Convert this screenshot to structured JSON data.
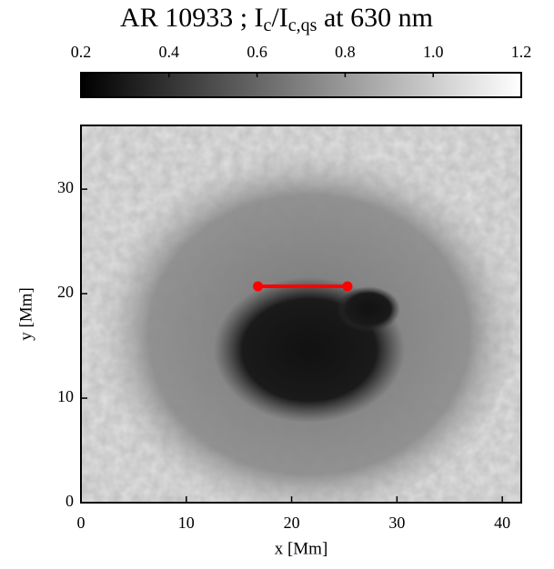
{
  "chart_data": {
    "type": "image",
    "title_parts": [
      "AR 10933 ; I",
      "c",
      "/I",
      "c,qs",
      " at 630 nm"
    ],
    "colorbar": {
      "clim": [
        0.2,
        1.2
      ],
      "ticks": [
        0.2,
        0.4,
        0.6,
        0.8,
        {
          "value": 1,
          "label": "1.0"
        },
        1.2
      ],
      "colors": [
        "#000000",
        "#ffffff"
      ]
    },
    "x_label": "x [Mm]",
    "y_label": "y [Mm]",
    "xlim": [
      0,
      41.8
    ],
    "ylim": [
      0,
      36.1
    ],
    "xticks": [
      0,
      10,
      20,
      30,
      40
    ],
    "yticks": [
      0,
      10,
      20,
      30
    ],
    "series": [
      {
        "x": [
          16.8,
          25.3
        ],
        "values": [
          20.7,
          20.7
        ],
        "color": "#ff0000"
      }
    ]
  }
}
